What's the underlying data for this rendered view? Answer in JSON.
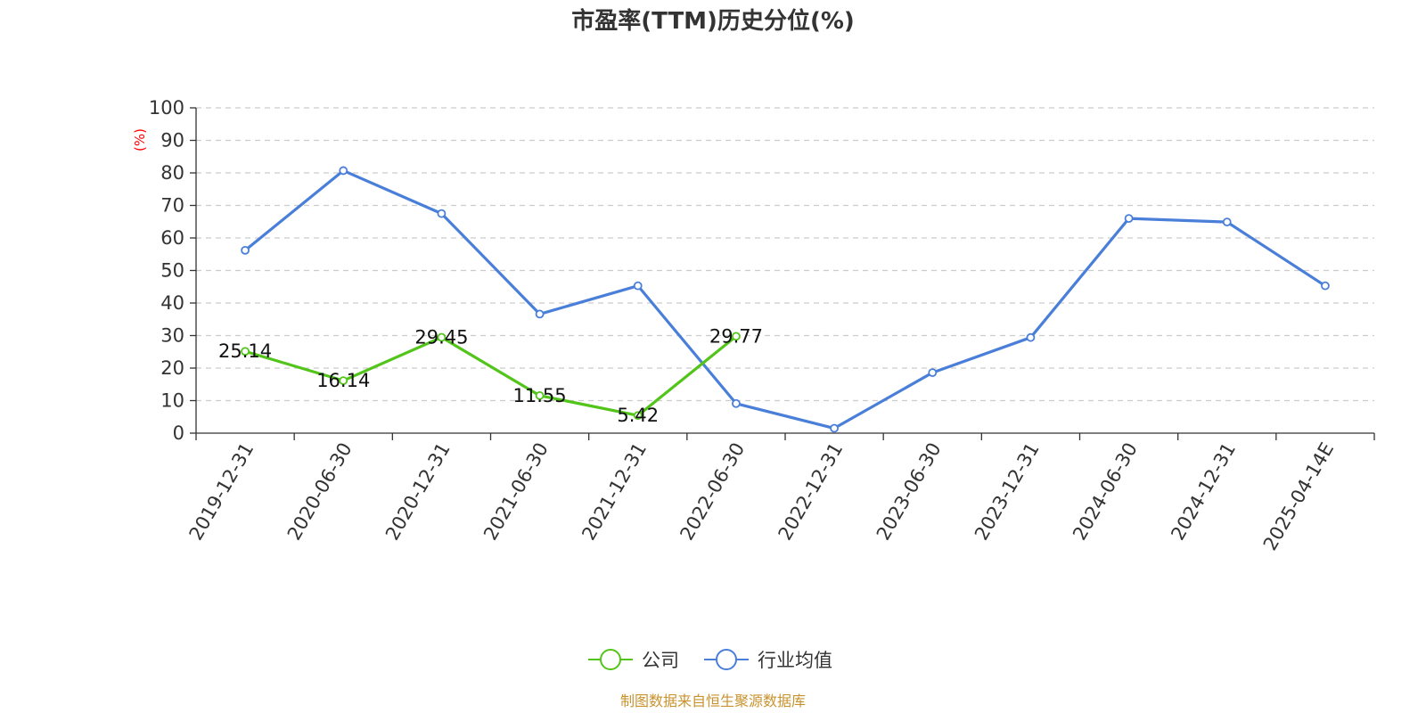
{
  "chart_data": {
    "type": "line",
    "title": "市盈率(TTM)历史分位(%)",
    "xlabel": "",
    "ylabel": "(%)",
    "ylim": [
      0,
      100
    ],
    "yticks": [
      0,
      10,
      20,
      30,
      40,
      50,
      60,
      70,
      80,
      90,
      100
    ],
    "grid": "horizontal dashed",
    "legend_position": "bottom-center",
    "categories": [
      "2019-12-31",
      "2020-06-30",
      "2020-12-31",
      "2021-06-30",
      "2021-12-31",
      "2022-06-30",
      "2022-12-31",
      "2023-06-30",
      "2023-12-31",
      "2024-06-30",
      "2024-12-31",
      "2025-04-14E"
    ],
    "series": [
      {
        "name": "公司",
        "color": "#52c41a",
        "values": [
          25.14,
          16.14,
          29.45,
          11.55,
          5.42,
          29.77,
          null,
          null,
          null,
          null,
          null,
          null
        ],
        "data_labels": [
          "25.14",
          "16.14",
          "29.45",
          "11.55",
          "5.42",
          "29.77"
        ]
      },
      {
        "name": "行业均值",
        "color": "#4a7fd9",
        "values": [
          56.2,
          80.7,
          67.5,
          36.6,
          45.3,
          9.1,
          1.5,
          18.6,
          29.4,
          66.0,
          64.9,
          45.3
        ]
      }
    ],
    "source": "制图数据来自恒生聚源数据库",
    "source_color": "#c8932e"
  }
}
